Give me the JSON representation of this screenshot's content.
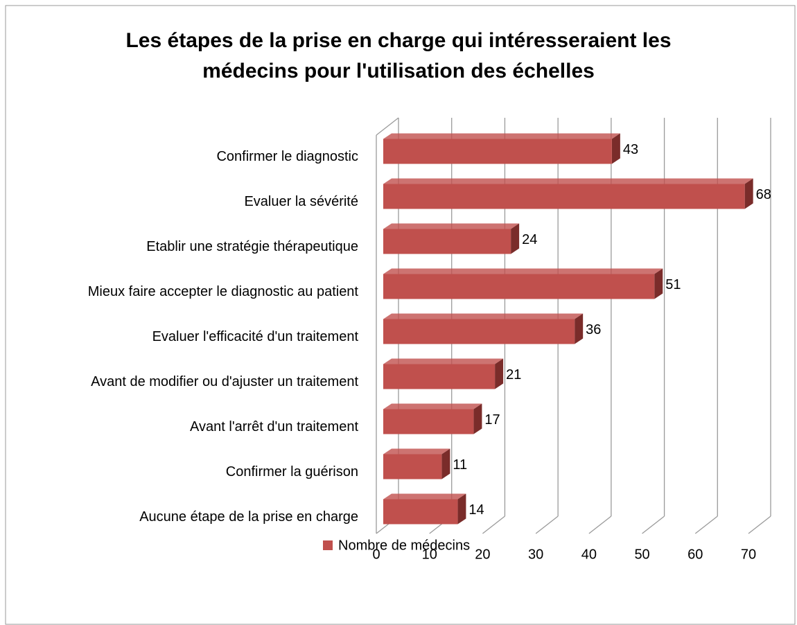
{
  "chart_data": {
    "type": "bar",
    "orientation": "horizontal",
    "three_d": true,
    "title": [
      "Les étapes de la prise en charge qui intéresseraient les",
      "médecins pour l'utilisation des échelles"
    ],
    "categories": [
      "Confirmer le diagnostic",
      "Evaluer la sévérité",
      "Etablir une stratégie thérapeutique",
      "Mieux faire accepter le diagnostic au patient",
      "Evaluer l'efficacité d'un traitement",
      "Avant de modifier ou d'ajuster un traitement",
      "Avant l'arrêt d'un traitement",
      "Confirmer la guérison",
      "Aucune étape de la prise en charge"
    ],
    "series": [
      {
        "name": "Nombre de médecins",
        "color": "#c0504d",
        "values": [
          43,
          68,
          24,
          51,
          36,
          21,
          17,
          11,
          14
        ]
      }
    ],
    "xlim": [
      0,
      70
    ],
    "xticks": [
      0,
      10,
      20,
      30,
      40,
      50,
      60,
      70
    ],
    "grid": true,
    "legend": "bottom"
  }
}
